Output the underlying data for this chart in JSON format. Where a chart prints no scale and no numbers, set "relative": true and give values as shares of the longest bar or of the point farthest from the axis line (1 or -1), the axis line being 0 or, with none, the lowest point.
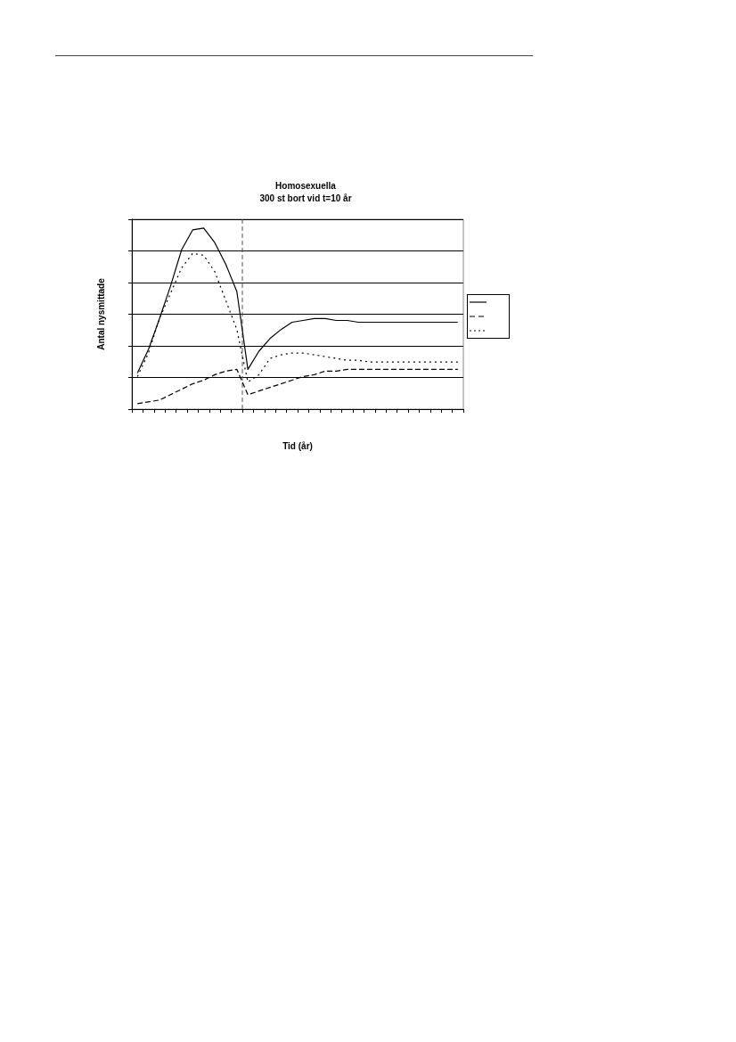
{
  "chart_data": {
    "type": "line",
    "title": "Homosexuella\n300 st bort vid t=10 år",
    "xlabel": "Tid (år)",
    "ylabel": "Antal nysmittade",
    "categories": [
      null,
      null,
      null,
      null,
      null,
      null,
      null,
      null,
      null,
      null,
      null,
      null,
      null,
      null,
      null,
      null,
      null,
      null,
      null,
      null,
      null,
      null,
      null,
      null,
      null,
      null,
      null,
      null,
      null,
      null
    ],
    "relative": true,
    "grid": "y",
    "marker": "none",
    "series": [
      {
        "color": "#000000",
        "line_style": "solid",
        "values": [
          0.2,
          0.33,
          0.5,
          0.68,
          0.88,
          0.99,
          1,
          0.92,
          0.8,
          0.65,
          0.22,
          0.32,
          0.39,
          0.44,
          0.48,
          0.49,
          0.5,
          0.5,
          0.49,
          0.49,
          0.48,
          0.48,
          0.48,
          0.48,
          0.48,
          0.48,
          0.48,
          0.48,
          0.48,
          0.48
        ]
      },
      {
        "color": "#000000",
        "line_style": "dashed",
        "values": [
          0.03,
          0.04,
          0.05,
          0.08,
          0.11,
          0.14,
          0.16,
          0.19,
          0.21,
          0.22,
          0.08,
          0.1,
          0.12,
          0.14,
          0.16,
          0.18,
          0.19,
          0.21,
          0.21,
          0.22,
          0.22,
          0.22,
          0.22,
          0.22,
          0.22,
          0.22,
          0.22,
          0.22,
          0.22,
          0.22
        ]
      },
      {
        "color": "#000000",
        "line_style": "dotted",
        "values": [
          0.18,
          0.31,
          0.5,
          0.64,
          0.78,
          0.86,
          0.85,
          0.76,
          0.6,
          0.44,
          0.15,
          0.19,
          0.28,
          0.3,
          0.31,
          0.31,
          0.3,
          0.29,
          0.28,
          0.27,
          0.27,
          0.26,
          0.26,
          0.26,
          0.26,
          0.26,
          0.26,
          0.26,
          0.26,
          0.26
        ]
      }
    ]
  }
}
